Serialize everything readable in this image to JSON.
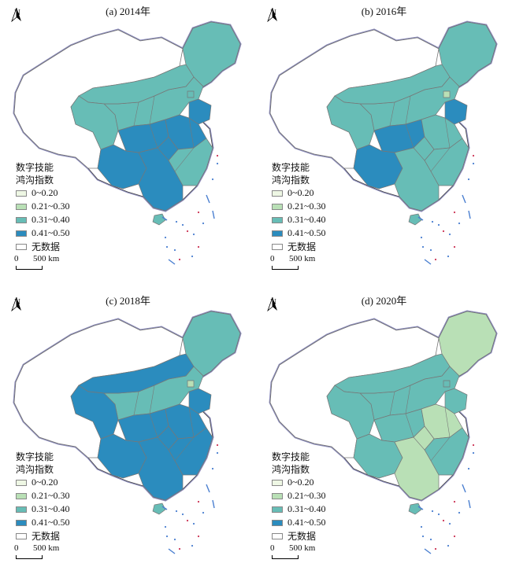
{
  "colors": {
    "class_0": "#eef7e4",
    "class_1": "#b9e0b6",
    "class_2": "#67bdb6",
    "class_3": "#2b8cbe",
    "no_data": "#ffffff",
    "border": "#777777",
    "outline": "#8f8fbf"
  },
  "legend": {
    "title_line1": "数字技能",
    "title_line2": "鸿沟指数",
    "classes": [
      {
        "label": "0~0.20",
        "color_key": "class_0"
      },
      {
        "label": "0.21~0.30",
        "color_key": "class_1"
      },
      {
        "label": "0.31~0.40",
        "color_key": "class_2"
      },
      {
        "label": "0.41~0.50",
        "color_key": "class_3"
      },
      {
        "label": "无数据",
        "color_key": "no_data"
      }
    ]
  },
  "scale_bar": {
    "zero": "0",
    "distance": "500 km"
  },
  "north_arrow": {
    "letter": "N",
    "icon": "north-arrow-icon"
  },
  "panels": [
    {
      "title": "(a) 2014年",
      "regions": {
        "northeast": 2,
        "north_central": 2,
        "central_west": 3,
        "central_east": 3,
        "south_west": 3,
        "south_east": 2,
        "south": 3,
        "inner_mongolia": 2,
        "qinghai_area": 2,
        "hainan": 2,
        "shandong": 3,
        "beijing": 2
      }
    },
    {
      "title": "(b) 2016年",
      "regions": {
        "northeast": 2,
        "north_central": 2,
        "central_west": 3,
        "central_east": 2,
        "south_west": 3,
        "south_east": 2,
        "south": 2,
        "inner_mongolia": 2,
        "qinghai_area": 2,
        "hainan": 2,
        "shandong": 3,
        "beijing": 1
      }
    },
    {
      "title": "(c) 2018年",
      "regions": {
        "northeast": 2,
        "north_central": 2,
        "central_west": 3,
        "central_east": 3,
        "south_west": 3,
        "south_east": 3,
        "south": 3,
        "inner_mongolia": 3,
        "qinghai_area": 3,
        "hainan": 2,
        "shandong": 3,
        "beijing": 1
      }
    },
    {
      "title": "(d) 2020年",
      "regions": {
        "northeast": 1,
        "north_central": 2,
        "central_west": 2,
        "central_east": 1,
        "south_west": 2,
        "south_east": 2,
        "south": 1,
        "inner_mongolia": 2,
        "qinghai_area": 2,
        "hainan": 2,
        "shandong": 2,
        "beijing": 2
      }
    }
  ]
}
